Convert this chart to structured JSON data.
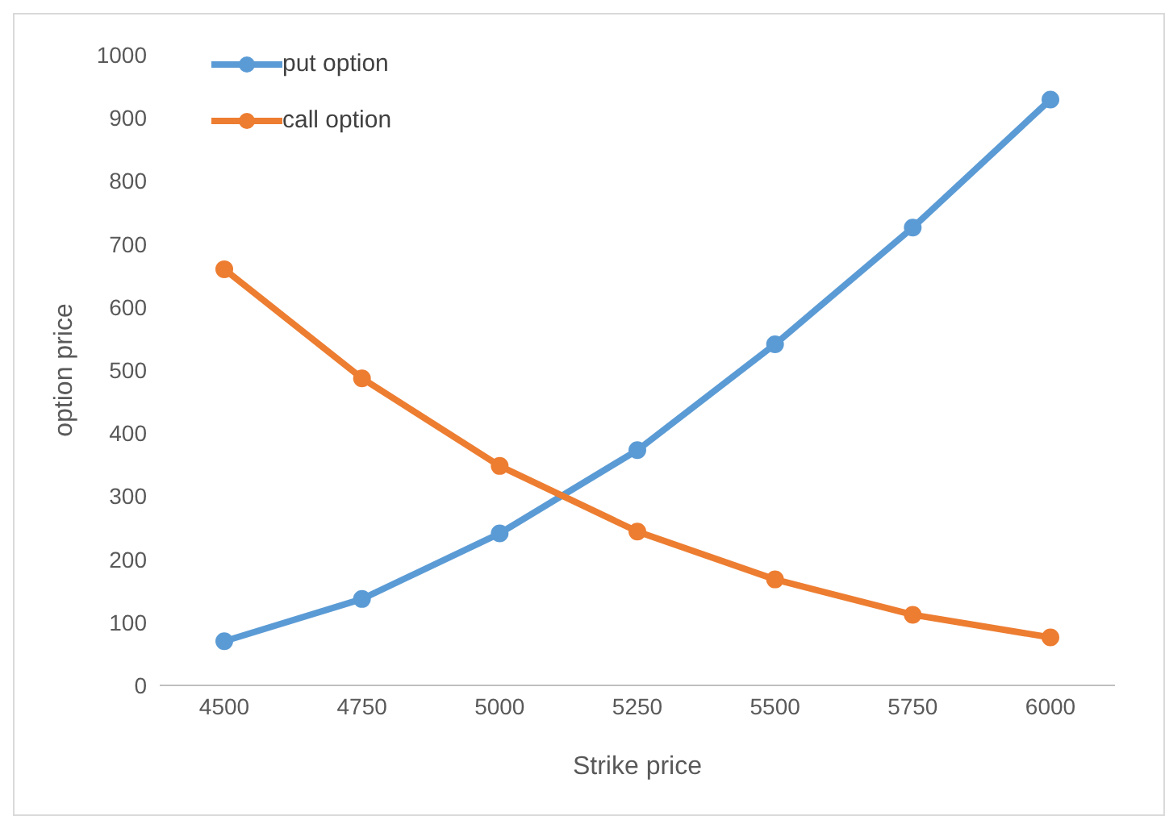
{
  "chart_data": {
    "type": "line",
    "xlabel": "Strike price",
    "ylabel": "option price",
    "categories": [
      "4500",
      "4750",
      "5000",
      "5250",
      "5500",
      "5750",
      "6000"
    ],
    "series": [
      {
        "name": "put option",
        "color": "#5b9bd5",
        "values": [
          70,
          137,
          241,
          373,
          541,
          726,
          929
        ]
      },
      {
        "name": "call option",
        "color": "#ed7d31",
        "values": [
          660,
          487,
          348,
          244,
          168,
          112,
          76
        ]
      }
    ],
    "ylim": [
      0,
      1000
    ],
    "yticks": [
      0,
      100,
      200,
      300,
      400,
      500,
      600,
      700,
      800,
      900,
      1000
    ],
    "grid": false,
    "legend": "top left",
    "marker": "circle",
    "line_style": "solid"
  }
}
